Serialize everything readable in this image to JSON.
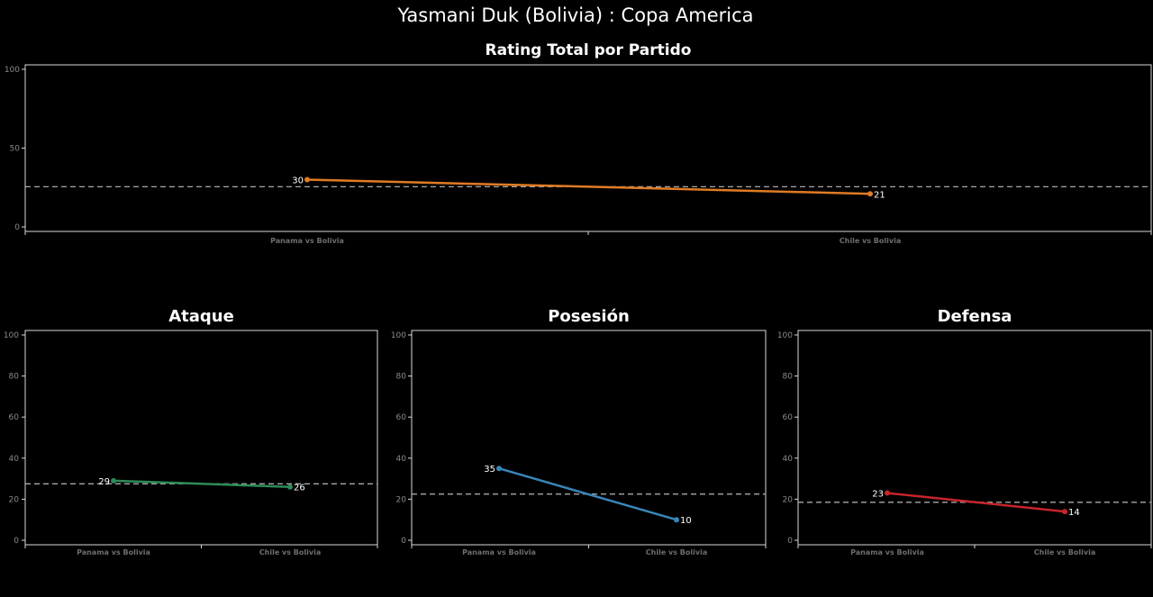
{
  "suptitle": "Yasmani Duk (Bolivia) :  Copa  America",
  "chart_data": [
    {
      "type": "line",
      "title": "Rating Total por Partido",
      "categories": [
        "Panama vs Bolivia",
        "Chile vs Bolivia"
      ],
      "series": [
        {
          "values": [
            30,
            21
          ],
          "color": "#e07b24"
        }
      ],
      "average_line": 25.5,
      "ylim": [
        0,
        100
      ],
      "yticks": [
        0,
        50,
        100
      ],
      "grid": false
    },
    {
      "type": "line",
      "title": "Ataque",
      "categories": [
        "Panama vs Bolivia",
        "Chile vs Bolivia"
      ],
      "series": [
        {
          "values": [
            29,
            26
          ],
          "color": "#2e8b57"
        }
      ],
      "average_line": 27.5,
      "ylim": [
        0,
        100
      ],
      "yticks": [
        0,
        20,
        40,
        60,
        80,
        100
      ],
      "grid": false
    },
    {
      "type": "line",
      "title": "Posesión",
      "categories": [
        "Panama vs Bolivia",
        "Chile vs Bolivia"
      ],
      "series": [
        {
          "values": [
            35,
            10
          ],
          "color": "#3a85b8"
        }
      ],
      "average_line": 22.5,
      "ylim": [
        0,
        100
      ],
      "yticks": [
        0,
        20,
        40,
        60,
        80,
        100
      ],
      "grid": false
    },
    {
      "type": "line",
      "title": "Defensa",
      "categories": [
        "Panama vs Bolivia",
        "Chile vs Bolivia"
      ],
      "series": [
        {
          "values": [
            23,
            14
          ],
          "color": "#c8242b"
        }
      ],
      "average_line": 18.5,
      "ylim": [
        0,
        100
      ],
      "yticks": [
        0,
        20,
        40,
        60,
        80,
        100
      ],
      "grid": false
    }
  ]
}
